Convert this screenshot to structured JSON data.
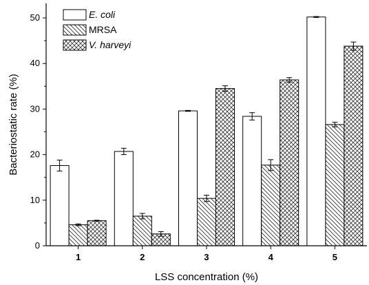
{
  "chart_data": {
    "type": "bar",
    "xlabel": "LSS concentration (%)",
    "ylabel": "Bacteriostatic rate (%)",
    "categories": [
      "1",
      "2",
      "3",
      "4",
      "5"
    ],
    "ylim": [
      0,
      53
    ],
    "yticks": [
      0,
      10,
      20,
      30,
      40,
      50
    ],
    "grid": false,
    "legend_position": "top-left",
    "series": [
      {
        "name": "E. coli",
        "pattern": "blank",
        "values": [
          17.6,
          20.7,
          29.6,
          28.4,
          50.2
        ],
        "errors": [
          1.2,
          0.7,
          0.1,
          0.8,
          0.1
        ]
      },
      {
        "name": "MRSA",
        "pattern": "diagonal",
        "values": [
          4.6,
          6.5,
          10.4,
          17.7,
          26.6
        ],
        "errors": [
          0.2,
          0.6,
          0.7,
          1.2,
          0.5
        ]
      },
      {
        "name": "V. harveyi",
        "pattern": "crosshatch",
        "values": [
          5.5,
          2.6,
          34.5,
          36.4,
          43.8
        ],
        "errors": [
          0.1,
          0.5,
          0.6,
          0.5,
          0.9
        ]
      }
    ]
  }
}
